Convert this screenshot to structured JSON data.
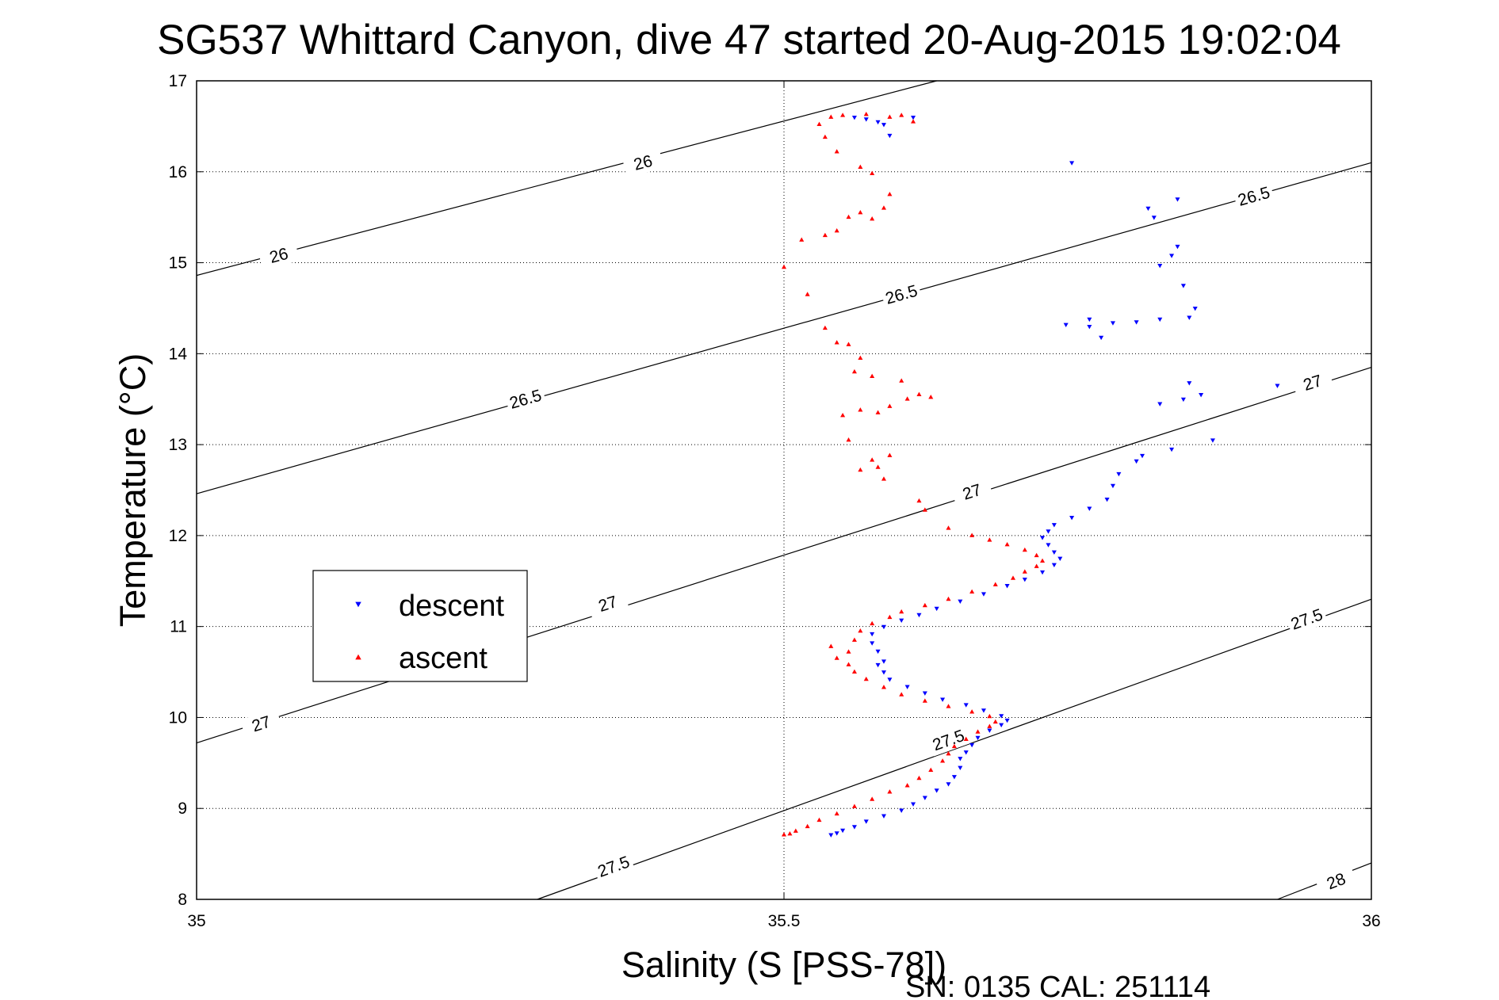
{
  "chart_data": {
    "type": "scatter",
    "title": "SG537 Whittard Canyon, dive 47 started 20-Aug-2015 19:02:04",
    "xlabel": "Salinity (S [PSS-78])",
    "ylabel": "Temperature (°C)",
    "xlim": [
      35,
      36
    ],
    "ylim": [
      8,
      17
    ],
    "xticks": [
      35,
      35.5,
      36
    ],
    "xtick_labels": [
      "35",
      "35.5",
      "36"
    ],
    "yticks": [
      8,
      9,
      10,
      11,
      12,
      13,
      14,
      15,
      16,
      17
    ],
    "ytick_labels": [
      "8",
      "9",
      "10",
      "11",
      "12",
      "13",
      "14",
      "15",
      "16",
      "17"
    ],
    "grid": true,
    "legend": {
      "placement": "left",
      "entries": [
        "descent",
        "ascent"
      ]
    },
    "colors": {
      "descent": "#0000ff",
      "ascent": "#ff0000",
      "contour": "#000000"
    },
    "contours": [
      {
        "level": "26",
        "lines": [
          [
            [
              35.0,
              14.86
            ],
            [
              35.63,
              17.0
            ]
          ]
        ],
        "labels": [
          {
            "x": 35.07,
            "y": 15.08
          },
          {
            "x": 35.38,
            "y": 16.1
          }
        ]
      },
      {
        "level": "26.5",
        "lines": [
          [
            [
              35.0,
              12.46
            ],
            [
              36.0,
              16.1
            ]
          ]
        ],
        "labels": [
          {
            "x": 35.28,
            "y": 13.5
          },
          {
            "x": 35.6,
            "y": 14.65
          },
          {
            "x": 35.9,
            "y": 15.73
          }
        ]
      },
      {
        "level": "27",
        "lines": [
          [
            [
              35.0,
              9.72
            ],
            [
              36.0,
              13.85
            ]
          ]
        ],
        "labels": [
          {
            "x": 35.055,
            "y": 9.93
          },
          {
            "x": 35.35,
            "y": 11.25
          },
          {
            "x": 35.66,
            "y": 12.48
          },
          {
            "x": 35.95,
            "y": 13.68
          }
        ]
      },
      {
        "level": "27.5",
        "lines": [
          [
            [
              35.29,
              8.0
            ],
            [
              36.0,
              11.3
            ]
          ]
        ],
        "labels": [
          {
            "x": 35.355,
            "y": 8.36
          },
          {
            "x": 35.64,
            "y": 9.75
          },
          {
            "x": 35.945,
            "y": 11.08
          }
        ]
      },
      {
        "level": "28",
        "lines": [
          [
            [
              35.92,
              8.0
            ],
            [
              36.0,
              8.4
            ]
          ]
        ],
        "labels": [
          {
            "x": 35.97,
            "y": 8.2
          }
        ]
      }
    ],
    "series": [
      {
        "name": "descent",
        "marker": "down-triangle",
        "points": [
          [
            35.54,
            8.71
          ],
          [
            35.545,
            8.73
          ],
          [
            35.55,
            8.76
          ],
          [
            35.56,
            8.8
          ],
          [
            35.57,
            8.86
          ],
          [
            35.585,
            8.92
          ],
          [
            35.6,
            8.98
          ],
          [
            35.61,
            9.05
          ],
          [
            35.62,
            9.12
          ],
          [
            35.63,
            9.2
          ],
          [
            35.64,
            9.27
          ],
          [
            35.645,
            9.35
          ],
          [
            35.65,
            9.45
          ],
          [
            35.65,
            9.55
          ],
          [
            35.655,
            9.62
          ],
          [
            35.66,
            9.7
          ],
          [
            35.665,
            9.78
          ],
          [
            35.675,
            9.86
          ],
          [
            35.685,
            9.92
          ],
          [
            35.69,
            9.97
          ],
          [
            35.685,
            10.02
          ],
          [
            35.67,
            10.08
          ],
          [
            35.655,
            10.14
          ],
          [
            35.635,
            10.2
          ],
          [
            35.62,
            10.27
          ],
          [
            35.605,
            10.34
          ],
          [
            35.59,
            10.42
          ],
          [
            35.585,
            10.5
          ],
          [
            35.58,
            10.58
          ],
          [
            35.585,
            10.62
          ],
          [
            35.58,
            10.73
          ],
          [
            35.575,
            10.82
          ],
          [
            35.575,
            10.92
          ],
          [
            35.585,
            11.0
          ],
          [
            35.6,
            11.07
          ],
          [
            35.615,
            11.13
          ],
          [
            35.63,
            11.2
          ],
          [
            35.65,
            11.28
          ],
          [
            35.67,
            11.36
          ],
          [
            35.69,
            11.45
          ],
          [
            35.705,
            11.52
          ],
          [
            35.72,
            11.6
          ],
          [
            35.73,
            11.68
          ],
          [
            35.735,
            11.75
          ],
          [
            35.73,
            11.82
          ],
          [
            35.725,
            11.9
          ],
          [
            35.72,
            11.98
          ],
          [
            35.725,
            12.05
          ],
          [
            35.73,
            12.12
          ],
          [
            35.745,
            12.2
          ],
          [
            35.76,
            12.3
          ],
          [
            35.775,
            12.4
          ],
          [
            35.78,
            12.55
          ],
          [
            35.785,
            12.68
          ],
          [
            35.8,
            12.82
          ],
          [
            35.805,
            12.88
          ],
          [
            35.83,
            12.95
          ],
          [
            35.865,
            13.05
          ],
          [
            35.82,
            13.45
          ],
          [
            35.84,
            13.5
          ],
          [
            35.855,
            13.55
          ],
          [
            35.845,
            13.68
          ],
          [
            35.92,
            13.65
          ],
          [
            35.74,
            14.32
          ],
          [
            35.76,
            14.3
          ],
          [
            35.76,
            14.38
          ],
          [
            35.77,
            14.18
          ],
          [
            35.78,
            14.34
          ],
          [
            35.8,
            14.35
          ],
          [
            35.82,
            14.38
          ],
          [
            35.845,
            14.4
          ],
          [
            35.85,
            14.5
          ],
          [
            35.84,
            14.75
          ],
          [
            35.82,
            14.97
          ],
          [
            35.83,
            15.08
          ],
          [
            35.835,
            15.18
          ],
          [
            35.815,
            15.5
          ],
          [
            35.81,
            15.6
          ],
          [
            35.835,
            15.7
          ],
          [
            35.745,
            16.1
          ],
          [
            35.56,
            16.6
          ],
          [
            35.57,
            16.58
          ],
          [
            35.58,
            16.55
          ],
          [
            35.585,
            16.52
          ],
          [
            35.59,
            16.4
          ],
          [
            35.61,
            16.6
          ]
        ]
      },
      {
        "name": "ascent",
        "marker": "up-triangle",
        "points": [
          [
            35.5,
            8.71
          ],
          [
            35.505,
            8.72
          ],
          [
            35.51,
            8.75
          ],
          [
            35.52,
            8.8
          ],
          [
            35.53,
            8.87
          ],
          [
            35.545,
            8.94
          ],
          [
            35.56,
            9.02
          ],
          [
            35.575,
            9.1
          ],
          [
            35.59,
            9.18
          ],
          [
            35.605,
            9.25
          ],
          [
            35.615,
            9.33
          ],
          [
            35.625,
            9.42
          ],
          [
            35.635,
            9.52
          ],
          [
            35.64,
            9.6
          ],
          [
            35.645,
            9.68
          ],
          [
            35.655,
            9.76
          ],
          [
            35.665,
            9.84
          ],
          [
            35.675,
            9.9
          ],
          [
            35.68,
            9.95
          ],
          [
            35.675,
            10.01
          ],
          [
            35.66,
            10.06
          ],
          [
            35.64,
            10.12
          ],
          [
            35.62,
            10.18
          ],
          [
            35.6,
            10.25
          ],
          [
            35.585,
            10.33
          ],
          [
            35.57,
            10.42
          ],
          [
            35.56,
            10.5
          ],
          [
            35.555,
            10.58
          ],
          [
            35.545,
            10.65
          ],
          [
            35.54,
            10.78
          ],
          [
            35.555,
            10.72
          ],
          [
            35.56,
            10.85
          ],
          [
            35.565,
            10.95
          ],
          [
            35.575,
            11.03
          ],
          [
            35.59,
            11.1
          ],
          [
            35.6,
            11.16
          ],
          [
            35.62,
            11.23
          ],
          [
            35.64,
            11.3
          ],
          [
            35.66,
            11.38
          ],
          [
            35.68,
            11.46
          ],
          [
            35.695,
            11.53
          ],
          [
            35.705,
            11.6
          ],
          [
            35.715,
            11.66
          ],
          [
            35.72,
            11.72
          ],
          [
            35.715,
            11.78
          ],
          [
            35.705,
            11.84
          ],
          [
            35.69,
            11.9
          ],
          [
            35.675,
            11.95
          ],
          [
            35.66,
            12.0
          ],
          [
            35.64,
            12.08
          ],
          [
            35.62,
            12.28
          ],
          [
            35.615,
            12.38
          ],
          [
            35.585,
            12.62
          ],
          [
            35.58,
            12.75
          ],
          [
            35.565,
            12.72
          ],
          [
            35.575,
            12.83
          ],
          [
            35.59,
            12.88
          ],
          [
            35.555,
            13.05
          ],
          [
            35.55,
            13.32
          ],
          [
            35.565,
            13.38
          ],
          [
            35.58,
            13.35
          ],
          [
            35.59,
            13.42
          ],
          [
            35.605,
            13.5
          ],
          [
            35.615,
            13.55
          ],
          [
            35.625,
            13.52
          ],
          [
            35.6,
            13.7
          ],
          [
            35.575,
            13.75
          ],
          [
            35.56,
            13.8
          ],
          [
            35.535,
            14.28
          ],
          [
            35.545,
            14.12
          ],
          [
            35.555,
            14.1
          ],
          [
            35.565,
            13.95
          ],
          [
            35.52,
            14.65
          ],
          [
            35.5,
            14.95
          ],
          [
            35.515,
            15.25
          ],
          [
            35.535,
            15.3
          ],
          [
            35.545,
            15.35
          ],
          [
            35.555,
            15.5
          ],
          [
            35.565,
            15.55
          ],
          [
            35.575,
            15.48
          ],
          [
            35.585,
            15.6
          ],
          [
            35.59,
            15.75
          ],
          [
            35.575,
            15.98
          ],
          [
            35.565,
            16.05
          ],
          [
            35.545,
            16.22
          ],
          [
            35.535,
            16.38
          ],
          [
            35.53,
            16.52
          ],
          [
            35.54,
            16.6
          ],
          [
            35.55,
            16.62
          ],
          [
            35.57,
            16.63
          ],
          [
            35.59,
            16.6
          ],
          [
            35.6,
            16.62
          ],
          [
            35.61,
            16.55
          ]
        ]
      }
    ]
  },
  "footer": {
    "serial_text": "SN: 0135  CAL: 251114"
  }
}
